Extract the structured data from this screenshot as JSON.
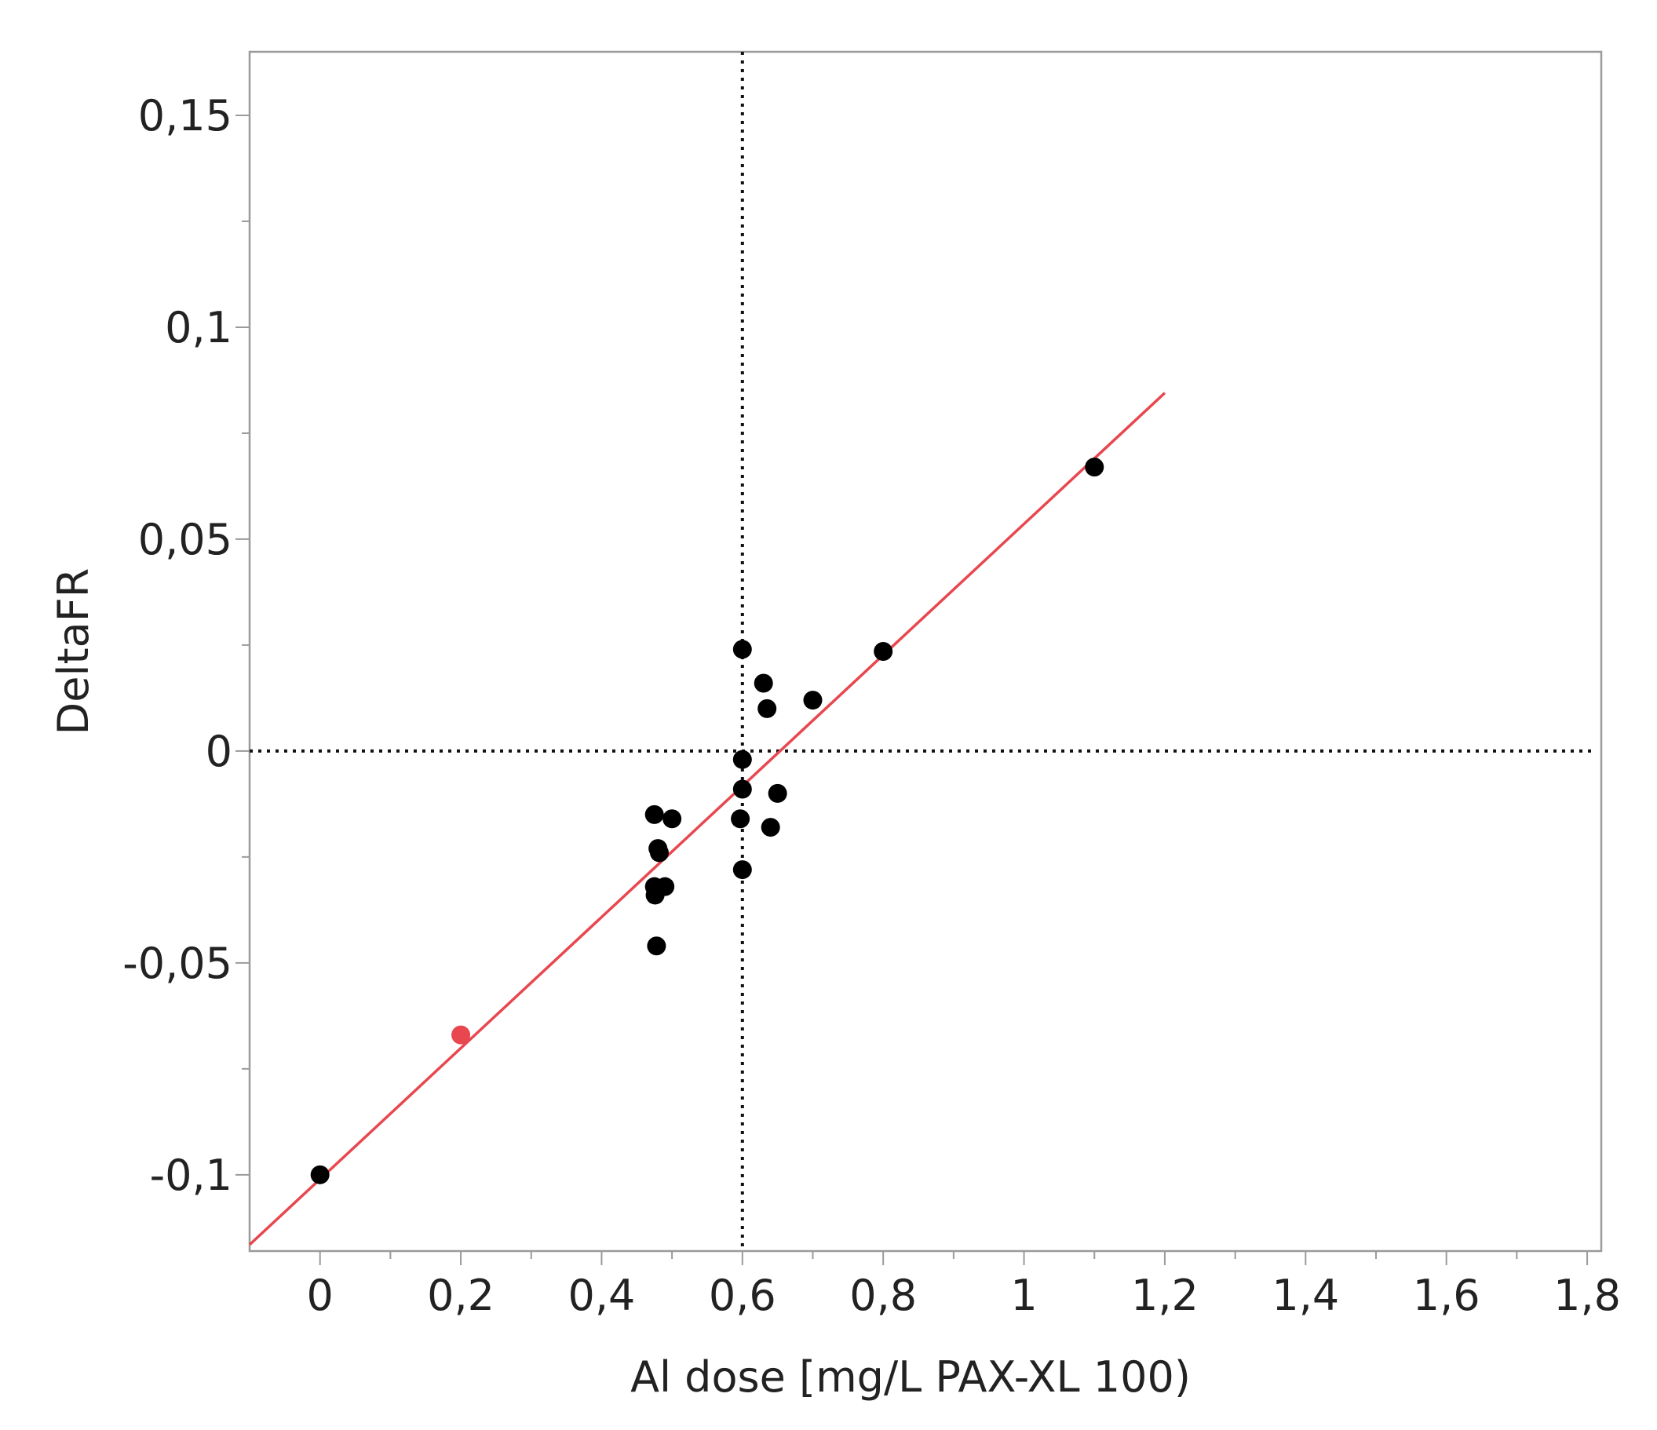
{
  "chart_data": {
    "type": "scatter",
    "title": "",
    "xlabel": "Al dose [mg/L PAX-XL 100)",
    "ylabel": "DeltaFR",
    "xlim": [
      -0.1,
      1.82
    ],
    "ylim": [
      -0.118,
      0.165
    ],
    "x_ticks": [
      {
        "value": 0,
        "label": "0"
      },
      {
        "value": 0.2,
        "label": "0,2"
      },
      {
        "value": 0.4,
        "label": "0,4"
      },
      {
        "value": 0.6,
        "label": "0,6"
      },
      {
        "value": 0.8,
        "label": "0,8"
      },
      {
        "value": 1,
        "label": "1"
      },
      {
        "value": 1.2,
        "label": "1,2"
      },
      {
        "value": 1.4,
        "label": "1,4"
      },
      {
        "value": 1.6,
        "label": "1,6"
      },
      {
        "value": 1.8,
        "label": "1,8"
      }
    ],
    "y_ticks": [
      {
        "value": 0.15,
        "label": "0,15"
      },
      {
        "value": 0.1,
        "label": "0,1"
      },
      {
        "value": 0.05,
        "label": "0,05"
      },
      {
        "value": 0,
        "label": "0"
      },
      {
        "value": -0.05,
        "label": "-0,05"
      },
      {
        "value": -0.1,
        "label": "-0,1"
      }
    ],
    "grid": false,
    "reference_lines": [
      {
        "axis": "x",
        "value": 0.6,
        "style": "dotted"
      },
      {
        "axis": "y",
        "value": 0,
        "style": "dotted"
      }
    ],
    "fit_line": {
      "x": [
        -0.1,
        1.2
      ],
      "y": [
        -0.1165,
        0.0845
      ],
      "color": "#e8474f"
    },
    "series": [
      {
        "color": "#000000",
        "points": [
          {
            "x": 0,
            "y": -0.1
          },
          {
            "x": 0.475,
            "y": -0.015
          },
          {
            "x": 0.5,
            "y": -0.016
          },
          {
            "x": 0.48,
            "y": -0.023
          },
          {
            "x": 0.482,
            "y": -0.024
          },
          {
            "x": 0.475,
            "y": -0.032
          },
          {
            "x": 0.49,
            "y": -0.032
          },
          {
            "x": 0.476,
            "y": -0.034
          },
          {
            "x": 0.478,
            "y": -0.046
          },
          {
            "x": 0.6,
            "y": 0.024
          },
          {
            "x": 0.63,
            "y": 0.016
          },
          {
            "x": 0.635,
            "y": 0.01
          },
          {
            "x": 0.7,
            "y": 0.012
          },
          {
            "x": 0.6,
            "y": -0.002
          },
          {
            "x": 0.6,
            "y": -0.009
          },
          {
            "x": 0.65,
            "y": -0.01
          },
          {
            "x": 0.597,
            "y": -0.016
          },
          {
            "x": 0.64,
            "y": -0.018
          },
          {
            "x": 0.6,
            "y": -0.028
          },
          {
            "x": 0.8,
            "y": 0.0235
          },
          {
            "x": 1.1,
            "y": 0.067
          }
        ]
      },
      {
        "color": "#e8474f",
        "points": [
          {
            "x": 0.2,
            "y": -0.067
          }
        ]
      }
    ]
  }
}
